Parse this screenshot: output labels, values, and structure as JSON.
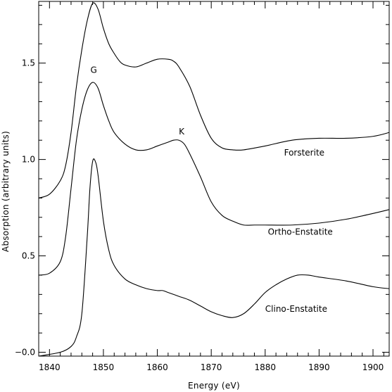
{
  "chart_data": {
    "type": "line",
    "title": "",
    "xlabel": "Energy (eV)",
    "ylabel": "Absorption (arbitrary units)",
    "xlim": [
      1838,
      1903
    ],
    "ylim": [
      -0.02,
      1.82
    ],
    "x_ticks": [
      1840,
      1850,
      1860,
      1870,
      1880,
      1890,
      1900
    ],
    "x_tick_labels": [
      "1840",
      "1850",
      "1860",
      "1870",
      "1880",
      "1890",
      "1900"
    ],
    "y_ticks": [
      0.0,
      0.5,
      1.0,
      1.5
    ],
    "y_tick_labels": [
      "−0.0",
      "0.5",
      "1.0",
      "1.5"
    ],
    "grid": false,
    "legend": "none",
    "line_color": "#000000",
    "series": [
      {
        "name": "Forsterite",
        "x": [
          1838,
          1840,
          1842,
          1843,
          1844,
          1845,
          1846,
          1847,
          1848,
          1849,
          1850,
          1851,
          1852,
          1853,
          1854,
          1856,
          1858,
          1860,
          1862,
          1863,
          1864,
          1866,
          1868,
          1870,
          1872,
          1874,
          1876,
          1880,
          1885,
          1890,
          1895,
          1900,
          1903
        ],
        "y": [
          0.8,
          0.82,
          0.89,
          0.97,
          1.14,
          1.38,
          1.57,
          1.72,
          1.81,
          1.78,
          1.68,
          1.6,
          1.55,
          1.51,
          1.49,
          1.48,
          1.5,
          1.52,
          1.52,
          1.51,
          1.48,
          1.38,
          1.23,
          1.11,
          1.06,
          1.05,
          1.05,
          1.07,
          1.1,
          1.11,
          1.11,
          1.12,
          1.14
        ]
      },
      {
        "name": "Ortho-Enstatite",
        "x": [
          1838,
          1840,
          1842,
          1843,
          1844,
          1845,
          1846,
          1847,
          1848,
          1849,
          1850,
          1851,
          1852,
          1854,
          1856,
          1858,
          1860,
          1862,
          1863,
          1864,
          1865,
          1866,
          1868,
          1870,
          1872,
          1874,
          1876,
          1878,
          1880,
          1885,
          1890,
          1895,
          1900,
          1903
        ],
        "y": [
          0.4,
          0.41,
          0.47,
          0.6,
          0.85,
          1.1,
          1.26,
          1.36,
          1.4,
          1.37,
          1.28,
          1.2,
          1.14,
          1.08,
          1.05,
          1.05,
          1.07,
          1.09,
          1.1,
          1.1,
          1.08,
          1.03,
          0.91,
          0.78,
          0.71,
          0.68,
          0.66,
          0.66,
          0.66,
          0.66,
          0.67,
          0.69,
          0.72,
          0.74
        ]
      },
      {
        "name": "Clino-Enstatite",
        "x": [
          1838,
          1842,
          1844,
          1845,
          1846,
          1847,
          1847.5,
          1848,
          1848.5,
          1849,
          1850,
          1851,
          1852,
          1854,
          1856,
          1858,
          1860,
          1861,
          1862,
          1864,
          1866,
          1868,
          1870,
          1872,
          1874,
          1876,
          1878,
          1880,
          1882,
          1884,
          1886,
          1888,
          1890,
          1895,
          1900,
          1903
        ],
        "y": [
          -0.02,
          0.0,
          0.03,
          0.08,
          0.2,
          0.6,
          0.85,
          0.99,
          0.99,
          0.92,
          0.68,
          0.53,
          0.45,
          0.38,
          0.35,
          0.33,
          0.32,
          0.32,
          0.31,
          0.29,
          0.27,
          0.24,
          0.21,
          0.19,
          0.18,
          0.2,
          0.25,
          0.31,
          0.35,
          0.38,
          0.4,
          0.4,
          0.39,
          0.37,
          0.34,
          0.33
        ]
      }
    ],
    "annotations": [
      {
        "text": "G",
        "x": 1848.2,
        "y": 1.45
      },
      {
        "text": "K",
        "x": 1864.5,
        "y": 1.13
      }
    ],
    "series_labels": [
      {
        "text": "Forsterite",
        "x": 1883.5,
        "y": 1.02
      },
      {
        "text": "Ortho-Enstatite",
        "x": 1880.5,
        "y": 0.61
      },
      {
        "text": "Clino-Enstatite",
        "x": 1880.0,
        "y": 0.21
      }
    ]
  }
}
